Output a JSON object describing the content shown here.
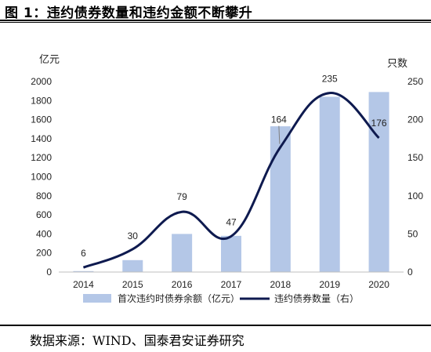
{
  "figure": {
    "title": "图 1：违约债券数量和违约金额不断攀升",
    "source": "数据来源：WIND、国泰君安证券研究"
  },
  "chart_data": {
    "type": "bar+line",
    "categories": [
      "2014",
      "2015",
      "2016",
      "2017",
      "2018",
      "2019",
      "2020"
    ],
    "left_axis": {
      "unit_label": "亿元",
      "range": [
        0,
        2000
      ],
      "ticks": [
        0,
        200,
        400,
        600,
        800,
        1000,
        1200,
        1400,
        1600,
        1800,
        2000
      ]
    },
    "right_axis": {
      "unit_label": "只数",
      "range": [
        0,
        250
      ],
      "ticks": [
        0,
        50,
        100,
        150,
        200,
        250
      ]
    },
    "series": [
      {
        "name": "首次违约时债券余额（亿元）",
        "type": "bar",
        "axis": "left",
        "color": "#b4c7e7",
        "values": [
          10,
          125,
          400,
          380,
          1530,
          1840,
          1890
        ]
      },
      {
        "name": "违约债券数量（右）",
        "type": "line",
        "axis": "right",
        "color": "#0e1a4f",
        "values": [
          6,
          30,
          79,
          47,
          164,
          235,
          176
        ],
        "labels": [
          "6",
          "30",
          "79",
          "47",
          "164",
          "235",
          "176"
        ]
      }
    ],
    "grid": false,
    "legend_position": "bottom"
  }
}
